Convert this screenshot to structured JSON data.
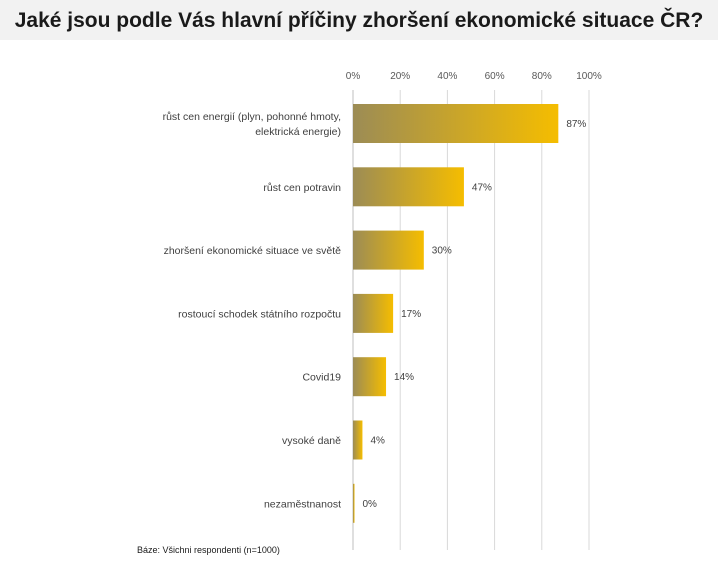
{
  "chart_data": {
    "type": "bar",
    "orientation": "horizontal",
    "title": "Jaké jsou podle Vás hlavní příčiny zhoršení ekonomické situace ČR?",
    "categories": [
      [
        "růst cen energií (plyn, pohonné hmoty,",
        "elektrická energie)"
      ],
      [
        "růst cen potravin"
      ],
      [
        "zhoršení ekonomické situace ve světě"
      ],
      [
        "rostoucí schodek státního rozpočtu"
      ],
      [
        "Covid19"
      ],
      [
        "vysoké daně"
      ],
      [
        "nezaměstnanost"
      ]
    ],
    "values": [
      87,
      47,
      30,
      17,
      14,
      4,
      0
    ],
    "value_labels": [
      "87%",
      "47%",
      "30%",
      "17%",
      "14%",
      "4%",
      "0%"
    ],
    "x_ticks": [
      "0%",
      "20%",
      "40%",
      "60%",
      "80%",
      "100%"
    ],
    "xlim": [
      0,
      100
    ],
    "axis_position": "top",
    "grid": true,
    "bar_gradient": [
      "#9c8c55",
      "#f5bd00"
    ]
  },
  "footnote": "Báze: Všichni respondenti (n=1000)"
}
